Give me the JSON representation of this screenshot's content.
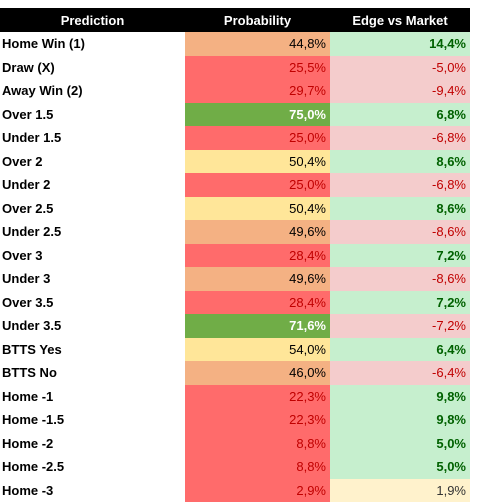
{
  "table": {
    "header": [
      "Prediction",
      "Probability",
      "Edge vs Market"
    ],
    "rows": [
      [
        "Home Win (1)",
        {
          "text": "44,8%",
          "fill": "#f4b183",
          "color": "#000000",
          "bold": false
        },
        {
          "text": "14,4%",
          "fill": "#c6efce",
          "color": "#006100",
          "bold": true
        }
      ],
      [
        "Draw (X)",
        {
          "text": "25,5%",
          "fill": "#ff6b6b",
          "color": "#c00000",
          "bold": false
        },
        {
          "text": "-5,0%",
          "fill": "#f4cccc",
          "color": "#c00000",
          "bold": false
        }
      ],
      [
        "Away Win (2)",
        {
          "text": "29,7%",
          "fill": "#ff6b6b",
          "color": "#c00000",
          "bold": false
        },
        {
          "text": "-9,4%",
          "fill": "#f4cccc",
          "color": "#c00000",
          "bold": false
        }
      ],
      [
        "Over 1.5",
        {
          "text": "75,0%",
          "fill": "#70ad47",
          "color": "#ffffff",
          "bold": true
        },
        {
          "text": "6,8%",
          "fill": "#c6efce",
          "color": "#006100",
          "bold": true
        }
      ],
      [
        "Under 1.5",
        {
          "text": "25,0%",
          "fill": "#ff6b6b",
          "color": "#c00000",
          "bold": false
        },
        {
          "text": "-6,8%",
          "fill": "#f4cccc",
          "color": "#c00000",
          "bold": false
        }
      ],
      [
        "Over 2",
        {
          "text": "50,4%",
          "fill": "#ffe699",
          "color": "#000000",
          "bold": false
        },
        {
          "text": "8,6%",
          "fill": "#c6efce",
          "color": "#006100",
          "bold": true
        }
      ],
      [
        "Under 2",
        {
          "text": "25,0%",
          "fill": "#ff6b6b",
          "color": "#c00000",
          "bold": false
        },
        {
          "text": "-6,8%",
          "fill": "#f4cccc",
          "color": "#c00000",
          "bold": false
        }
      ],
      [
        "Over 2.5",
        {
          "text": "50,4%",
          "fill": "#ffe699",
          "color": "#000000",
          "bold": false
        },
        {
          "text": "8,6%",
          "fill": "#c6efce",
          "color": "#006100",
          "bold": true
        }
      ],
      [
        "Under 2.5",
        {
          "text": "49,6%",
          "fill": "#f4b183",
          "color": "#000000",
          "bold": false
        },
        {
          "text": "-8,6%",
          "fill": "#f4cccc",
          "color": "#c00000",
          "bold": false
        }
      ],
      [
        "Over 3",
        {
          "text": "28,4%",
          "fill": "#ff6b6b",
          "color": "#c00000",
          "bold": false
        },
        {
          "text": "7,2%",
          "fill": "#c6efce",
          "color": "#006100",
          "bold": true
        }
      ],
      [
        "Under 3",
        {
          "text": "49,6%",
          "fill": "#f4b183",
          "color": "#000000",
          "bold": false
        },
        {
          "text": "-8,6%",
          "fill": "#f4cccc",
          "color": "#c00000",
          "bold": false
        }
      ],
      [
        "Over 3.5",
        {
          "text": "28,4%",
          "fill": "#ff6b6b",
          "color": "#c00000",
          "bold": false
        },
        {
          "text": "7,2%",
          "fill": "#c6efce",
          "color": "#006100",
          "bold": true
        }
      ],
      [
        "Under 3.5",
        {
          "text": "71,6%",
          "fill": "#70ad47",
          "color": "#ffffff",
          "bold": true
        },
        {
          "text": "-7,2%",
          "fill": "#f4cccc",
          "color": "#c00000",
          "bold": false
        }
      ],
      [
        "BTTS Yes",
        {
          "text": "54,0%",
          "fill": "#ffe699",
          "color": "#000000",
          "bold": false
        },
        {
          "text": "6,4%",
          "fill": "#c6efce",
          "color": "#006100",
          "bold": true
        }
      ],
      [
        "BTTS No",
        {
          "text": "46,0%",
          "fill": "#f4b183",
          "color": "#000000",
          "bold": false
        },
        {
          "text": "-6,4%",
          "fill": "#f4cccc",
          "color": "#c00000",
          "bold": false
        }
      ],
      [
        "Home -1",
        {
          "text": "22,3%",
          "fill": "#ff6b6b",
          "color": "#c00000",
          "bold": false
        },
        {
          "text": "9,8%",
          "fill": "#c6efce",
          "color": "#006100",
          "bold": true
        }
      ],
      [
        "Home -1.5",
        {
          "text": "22,3%",
          "fill": "#ff6b6b",
          "color": "#c00000",
          "bold": false
        },
        {
          "text": "9,8%",
          "fill": "#c6efce",
          "color": "#006100",
          "bold": true
        }
      ],
      [
        "Home -2",
        {
          "text": "8,8%",
          "fill": "#ff6b6b",
          "color": "#c00000",
          "bold": false
        },
        {
          "text": "5,0%",
          "fill": "#c6efce",
          "color": "#006100",
          "bold": true
        }
      ],
      [
        "Home -2.5",
        {
          "text": "8,8%",
          "fill": "#ff6b6b",
          "color": "#c00000",
          "bold": false
        },
        {
          "text": "5,0%",
          "fill": "#c6efce",
          "color": "#006100",
          "bold": true
        }
      ],
      [
        "Home -3",
        {
          "text": "2,9%",
          "fill": "#ff6b6b",
          "color": "#c00000",
          "bold": false
        },
        {
          "text": "1,9%",
          "fill": "#fff2cc",
          "color": "#333333",
          "bold": false
        }
      ]
    ]
  }
}
